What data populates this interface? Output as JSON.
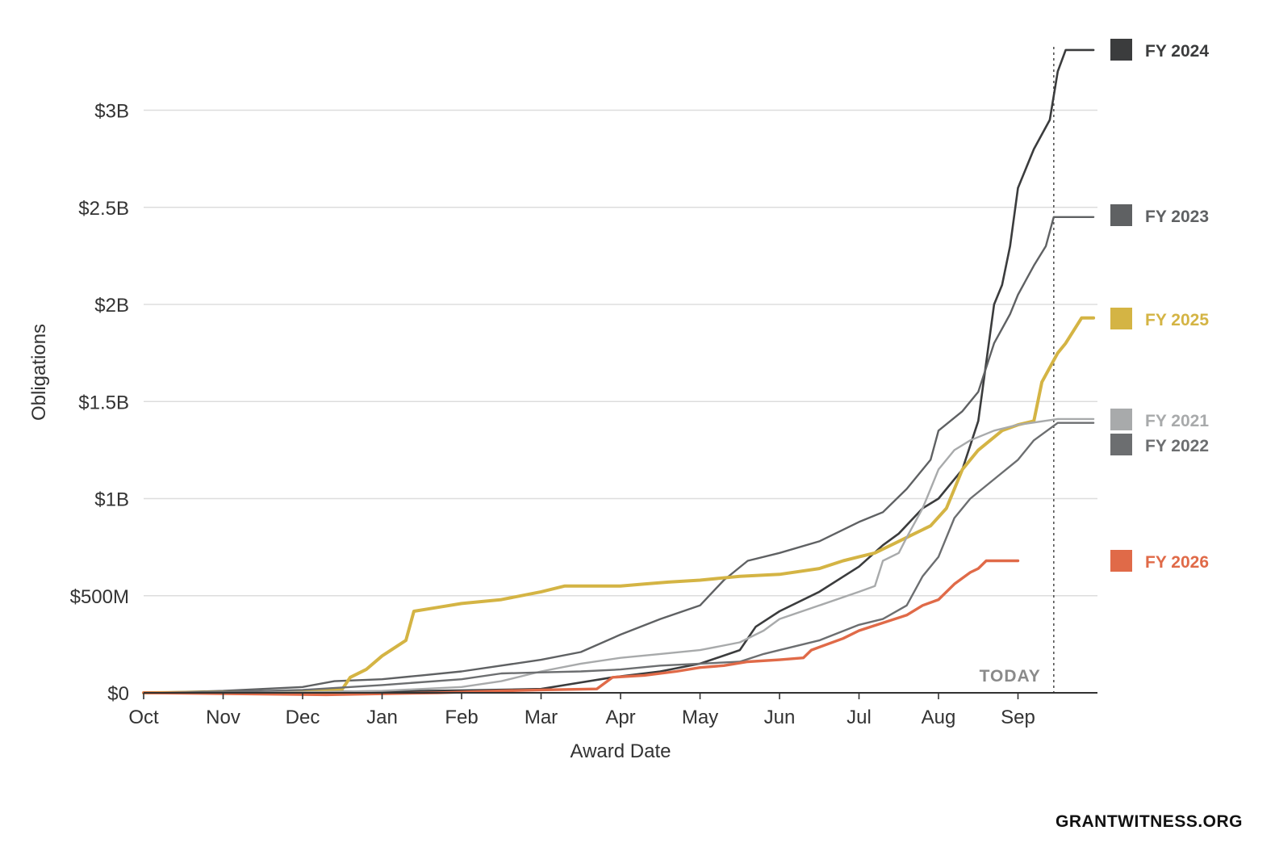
{
  "footer": {
    "brand": "GRANTWITNESS.ORG"
  },
  "today_label": "TODAY",
  "chart_data": {
    "type": "line",
    "xlabel": "Award Date",
    "ylabel": "Obligations",
    "x_unit": "month of fiscal year (0 = Oct 1)",
    "xlim": [
      0,
      12
    ],
    "ylim": [
      0,
      3300000000
    ],
    "y_ticks": [
      {
        "value": 0,
        "label": "$0"
      },
      {
        "value": 500000000,
        "label": "$500M"
      },
      {
        "value": 1000000000,
        "label": "$1B"
      },
      {
        "value": 1500000000,
        "label": "$1.5B"
      },
      {
        "value": 2000000000,
        "label": "$2B"
      },
      {
        "value": 2500000000,
        "label": "$2.5B"
      },
      {
        "value": 3000000000,
        "label": "$3B"
      }
    ],
    "x_ticks": [
      {
        "value": 0,
        "label": "Oct"
      },
      {
        "value": 1,
        "label": "Nov"
      },
      {
        "value": 2,
        "label": "Dec"
      },
      {
        "value": 3,
        "label": "Jan"
      },
      {
        "value": 4,
        "label": "Feb"
      },
      {
        "value": 5,
        "label": "Mar"
      },
      {
        "value": 6,
        "label": "Apr"
      },
      {
        "value": 7,
        "label": "May"
      },
      {
        "value": 8,
        "label": "Jun"
      },
      {
        "value": 9,
        "label": "Jul"
      },
      {
        "value": 10,
        "label": "Aug"
      },
      {
        "value": 11,
        "label": "Sep"
      }
    ],
    "grid": true,
    "legend_position": "right",
    "today_x": 11.45,
    "series": [
      {
        "name": "FY 2024",
        "color": "#3b3c3d",
        "width": 2.6,
        "points": [
          [
            0,
            0
          ],
          [
            1,
            2000000
          ],
          [
            2,
            5000000
          ],
          [
            3,
            8000000
          ],
          [
            4,
            12000000
          ],
          [
            5,
            20000000
          ],
          [
            5.3,
            40000000
          ],
          [
            5.9,
            80000000
          ],
          [
            6.5,
            110000000
          ],
          [
            7,
            150000000
          ],
          [
            7.5,
            220000000
          ],
          [
            7.7,
            340000000
          ],
          [
            8,
            420000000
          ],
          [
            8.5,
            520000000
          ],
          [
            9,
            650000000
          ],
          [
            9.3,
            760000000
          ],
          [
            9.5,
            820000000
          ],
          [
            9.8,
            950000000
          ],
          [
            10,
            1000000000
          ],
          [
            10.3,
            1150000000
          ],
          [
            10.5,
            1400000000
          ],
          [
            10.6,
            1700000000
          ],
          [
            10.7,
            2000000000
          ],
          [
            10.8,
            2100000000
          ],
          [
            10.9,
            2300000000
          ],
          [
            11,
            2600000000
          ],
          [
            11.2,
            2800000000
          ],
          [
            11.4,
            2950000000
          ],
          [
            11.5,
            3200000000
          ],
          [
            11.6,
            3310000000
          ],
          [
            11.95,
            3310000000
          ]
        ]
      },
      {
        "name": "FY 2023",
        "color": "#5f6163",
        "width": 2.4,
        "points": [
          [
            0,
            0
          ],
          [
            1,
            10000000
          ],
          [
            2,
            30000000
          ],
          [
            2.4,
            60000000
          ],
          [
            3,
            70000000
          ],
          [
            3.5,
            90000000
          ],
          [
            4,
            110000000
          ],
          [
            5,
            170000000
          ],
          [
            5.5,
            210000000
          ],
          [
            6,
            300000000
          ],
          [
            6.5,
            380000000
          ],
          [
            7,
            450000000
          ],
          [
            7.3,
            580000000
          ],
          [
            7.6,
            680000000
          ],
          [
            8,
            720000000
          ],
          [
            8.5,
            780000000
          ],
          [
            9,
            880000000
          ],
          [
            9.3,
            930000000
          ],
          [
            9.6,
            1050000000
          ],
          [
            9.9,
            1200000000
          ],
          [
            10,
            1350000000
          ],
          [
            10.3,
            1450000000
          ],
          [
            10.5,
            1550000000
          ],
          [
            10.7,
            1800000000
          ],
          [
            10.9,
            1950000000
          ],
          [
            11,
            2050000000
          ],
          [
            11.2,
            2200000000
          ],
          [
            11.35,
            2300000000
          ],
          [
            11.45,
            2450000000
          ],
          [
            11.95,
            2450000000
          ]
        ]
      },
      {
        "name": "FY 2025",
        "color": "#d4b444",
        "width": 4,
        "points": [
          [
            0,
            0
          ],
          [
            2,
            5000000
          ],
          [
            2.5,
            20000000
          ],
          [
            2.6,
            80000000
          ],
          [
            2.8,
            120000000
          ],
          [
            3,
            190000000
          ],
          [
            3.3,
            270000000
          ],
          [
            3.4,
            420000000
          ],
          [
            3.7,
            440000000
          ],
          [
            4,
            460000000
          ],
          [
            4.5,
            480000000
          ],
          [
            5,
            520000000
          ],
          [
            5.3,
            550000000
          ],
          [
            6,
            550000000
          ],
          [
            6.3,
            560000000
          ],
          [
            6.6,
            570000000
          ],
          [
            7,
            580000000
          ],
          [
            7.5,
            600000000
          ],
          [
            8,
            610000000
          ],
          [
            8.5,
            640000000
          ],
          [
            8.8,
            680000000
          ],
          [
            9,
            700000000
          ],
          [
            9.2,
            720000000
          ],
          [
            9.5,
            780000000
          ],
          [
            9.7,
            820000000
          ],
          [
            9.9,
            860000000
          ],
          [
            10.1,
            950000000
          ],
          [
            10.2,
            1050000000
          ],
          [
            10.3,
            1150000000
          ],
          [
            10.5,
            1250000000
          ],
          [
            10.8,
            1350000000
          ],
          [
            11,
            1380000000
          ],
          [
            11.2,
            1400000000
          ],
          [
            11.3,
            1600000000
          ],
          [
            11.5,
            1750000000
          ],
          [
            11.6,
            1800000000
          ],
          [
            11.8,
            1930000000
          ],
          [
            11.95,
            1930000000
          ]
        ]
      },
      {
        "name": "FY 2021",
        "color": "#a8aaab",
        "width": 2.4,
        "points": [
          [
            0,
            0
          ],
          [
            2,
            3000000
          ],
          [
            3,
            10000000
          ],
          [
            4,
            30000000
          ],
          [
            4.5,
            60000000
          ],
          [
            5,
            110000000
          ],
          [
            5.5,
            150000000
          ],
          [
            6,
            180000000
          ],
          [
            6.5,
            200000000
          ],
          [
            7,
            220000000
          ],
          [
            7.5,
            260000000
          ],
          [
            7.8,
            320000000
          ],
          [
            8,
            380000000
          ],
          [
            8.5,
            450000000
          ],
          [
            9,
            520000000
          ],
          [
            9.2,
            550000000
          ],
          [
            9.3,
            680000000
          ],
          [
            9.5,
            720000000
          ],
          [
            9.6,
            800000000
          ],
          [
            9.8,
            950000000
          ],
          [
            9.9,
            1050000000
          ],
          [
            10,
            1150000000
          ],
          [
            10.2,
            1250000000
          ],
          [
            10.4,
            1300000000
          ],
          [
            10.7,
            1350000000
          ],
          [
            11,
            1380000000
          ],
          [
            11.5,
            1410000000
          ],
          [
            11.95,
            1410000000
          ]
        ]
      },
      {
        "name": "FY 2022",
        "color": "#6c6e70",
        "width": 2.4,
        "points": [
          [
            0,
            0
          ],
          [
            1,
            5000000
          ],
          [
            2,
            15000000
          ],
          [
            3,
            40000000
          ],
          [
            4,
            70000000
          ],
          [
            4.5,
            100000000
          ],
          [
            5,
            105000000
          ],
          [
            5.5,
            110000000
          ],
          [
            6,
            120000000
          ],
          [
            6.5,
            140000000
          ],
          [
            7,
            150000000
          ],
          [
            7.5,
            160000000
          ],
          [
            7.8,
            200000000
          ],
          [
            8,
            220000000
          ],
          [
            8.5,
            270000000
          ],
          [
            9,
            350000000
          ],
          [
            9.3,
            380000000
          ],
          [
            9.6,
            450000000
          ],
          [
            9.8,
            600000000
          ],
          [
            10,
            700000000
          ],
          [
            10.2,
            900000000
          ],
          [
            10.4,
            1000000000
          ],
          [
            10.7,
            1100000000
          ],
          [
            11,
            1200000000
          ],
          [
            11.2,
            1300000000
          ],
          [
            11.5,
            1390000000
          ],
          [
            11.95,
            1390000000
          ]
        ]
      },
      {
        "name": "FY 2026",
        "color": "#e06a48",
        "width": 3.4,
        "points": [
          [
            0,
            0
          ],
          [
            2.3,
            -10000000
          ],
          [
            3,
            -5000000
          ],
          [
            3.7,
            0
          ],
          [
            4.5,
            10000000
          ],
          [
            5,
            15000000
          ],
          [
            5.7,
            20000000
          ],
          [
            5.9,
            80000000
          ],
          [
            6.3,
            90000000
          ],
          [
            6.7,
            110000000
          ],
          [
            7,
            130000000
          ],
          [
            7.3,
            140000000
          ],
          [
            7.6,
            160000000
          ],
          [
            8,
            170000000
          ],
          [
            8.3,
            180000000
          ],
          [
            8.4,
            220000000
          ],
          [
            8.8,
            280000000
          ],
          [
            9,
            320000000
          ],
          [
            9.3,
            360000000
          ],
          [
            9.6,
            400000000
          ],
          [
            9.8,
            450000000
          ],
          [
            10,
            480000000
          ],
          [
            10.2,
            560000000
          ],
          [
            10.4,
            620000000
          ],
          [
            10.5,
            640000000
          ],
          [
            10.6,
            680000000
          ],
          [
            11,
            680000000
          ]
        ]
      }
    ]
  }
}
